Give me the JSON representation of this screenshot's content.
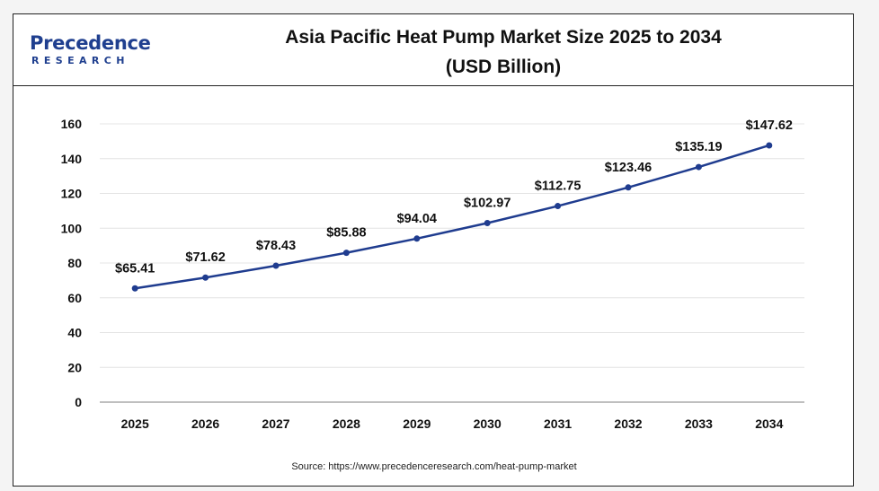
{
  "header": {
    "logo_main": "Precedence",
    "logo_sub": "RESEARCH",
    "title_line1": "Asia Pacific Heat Pump Market  Size 2025 to 2034",
    "title_line2": "(USD Billion)"
  },
  "source": "Source: https://www.precedenceresearch.com/heat-pump-market",
  "colors": {
    "line": "#1f3c8f",
    "logo": "#1f3f8f",
    "grid": "#e4e4e4"
  },
  "chart_data": {
    "type": "line",
    "title": "Asia Pacific Heat Pump Market  Size 2025 to 2034 (USD Billion)",
    "xlabel": "",
    "ylabel": "",
    "categories": [
      "2025",
      "2026",
      "2027",
      "2028",
      "2029",
      "2030",
      "2031",
      "2032",
      "2033",
      "2034"
    ],
    "series": [
      {
        "values": [
          65.41,
          71.62,
          78.43,
          85.88,
          94.04,
          102.97,
          112.75,
          123.46,
          135.19,
          147.62
        ]
      }
    ],
    "data_labels": [
      "$65.41",
      "$71.62",
      "$78.43",
      "$85.88",
      "$94.04",
      "$102.97",
      "$112.75",
      "$123.46",
      "$135.19",
      "$147.62"
    ],
    "ylim": [
      0,
      160
    ],
    "yticks": [
      0,
      20,
      40,
      60,
      80,
      100,
      120,
      140,
      160
    ],
    "grid": true,
    "legend": "none"
  }
}
